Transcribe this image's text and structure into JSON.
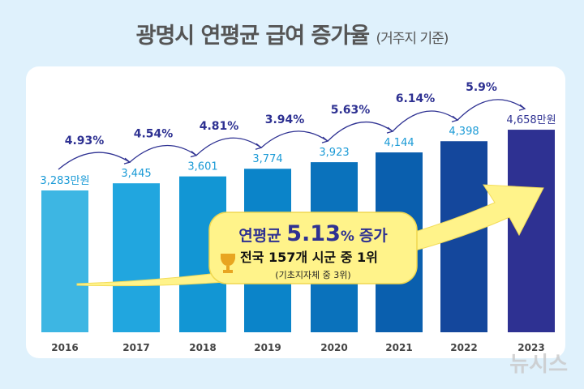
{
  "title": {
    "main": "광명시 연평균 급여 증가율",
    "sub": "(거주지 기준)"
  },
  "chart_data": {
    "type": "bar",
    "categories": [
      "2016",
      "2017",
      "2018",
      "2019",
      "2020",
      "2021",
      "2022",
      "2023"
    ],
    "values": [
      3283,
      3445,
      3601,
      3774,
      3923,
      4144,
      4398,
      4658
    ],
    "value_labels": [
      "3,283만원",
      "3,445",
      "3,601",
      "3,774",
      "3,923",
      "4,144",
      "4,398",
      "4,658만원"
    ],
    "growth_labels": [
      "4.93%",
      "4.54%",
      "4.81%",
      "3.94%",
      "5.63%",
      "6.14%",
      "5.9%"
    ],
    "unit": "만원",
    "colors": [
      "#3db6e3",
      "#21a6df",
      "#1296d4",
      "#0b84c9",
      "#0a72bc",
      "#0a5fae",
      "#14479c",
      "#2e3192"
    ]
  },
  "callout": {
    "line1_prefix": "연평균",
    "line1_value": "5.13",
    "line1_pct": "%",
    "line1_suffix": "증가",
    "line2": "전국 157개 시군 중 1위",
    "line3": "(기초지자체 중 3위)"
  },
  "watermark": "뉴시스"
}
